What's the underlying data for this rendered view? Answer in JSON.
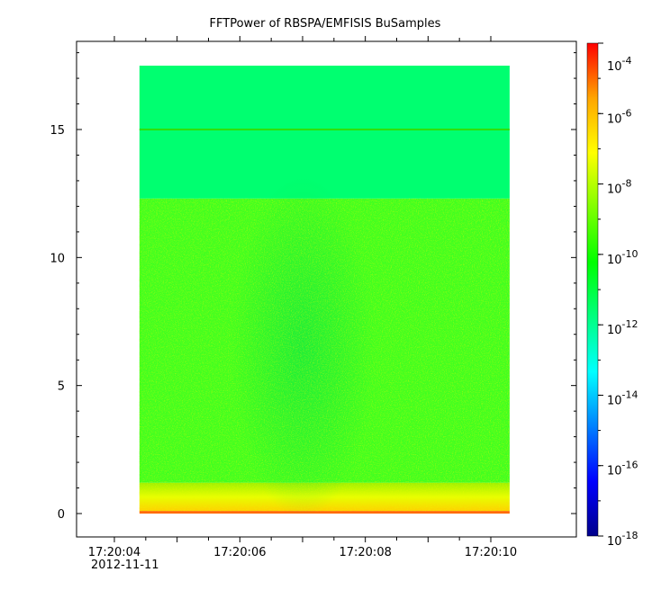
{
  "chart_data": {
    "type": "heatmap",
    "title": "FFTPower of RBSPA/EMFISIS  BuSamples",
    "xlabel": "",
    "ylabel": "",
    "x_tick_labels": [
      "17:20:04",
      "17:20:06",
      "17:20:08",
      "17:20:10"
    ],
    "x_date_label": "2012-11-11",
    "x_start": "17:20:04",
    "x_end": "17:20:10",
    "y_ticks": [
      0,
      5,
      10,
      15
    ],
    "ylim": [
      -0.8,
      18.7
    ],
    "data_extent": {
      "x_start": "17:20:04.4",
      "x_end": "17:20:10.3",
      "y_min": 0,
      "y_max": 17.5
    },
    "colorbar": {
      "scale": "log",
      "range": [
        1e-18,
        0.0001
      ],
      "tick_exponents": [
        -4,
        -6,
        -8,
        -10,
        -12,
        -14,
        -16,
        -18
      ],
      "tick_base": "10",
      "colormap": [
        "#00008b",
        "#0000ff",
        "#0080ff",
        "#00ffff",
        "#00ff80",
        "#00ff00",
        "#80ff00",
        "#ffff00",
        "#ffa500",
        "#ff0000"
      ]
    },
    "power_by_band": [
      {
        "y_range": [
          12.3,
          17.5
        ],
        "level": 1e-12,
        "color": "#00ff70"
      },
      {
        "y_range": [
          1.2,
          12.3
        ],
        "level": 1e-10,
        "color": "#40ff20"
      },
      {
        "y_range": [
          0.1,
          1.2
        ],
        "level": 1e-08,
        "color": "#d8ff00"
      },
      {
        "y_range": [
          0,
          0.1
        ],
        "level": 1e-06,
        "color": "#ff6a00"
      }
    ],
    "constant_line": {
      "y": 15,
      "color": "#2ee000"
    },
    "grid": false,
    "legend": "colorbar-right"
  }
}
